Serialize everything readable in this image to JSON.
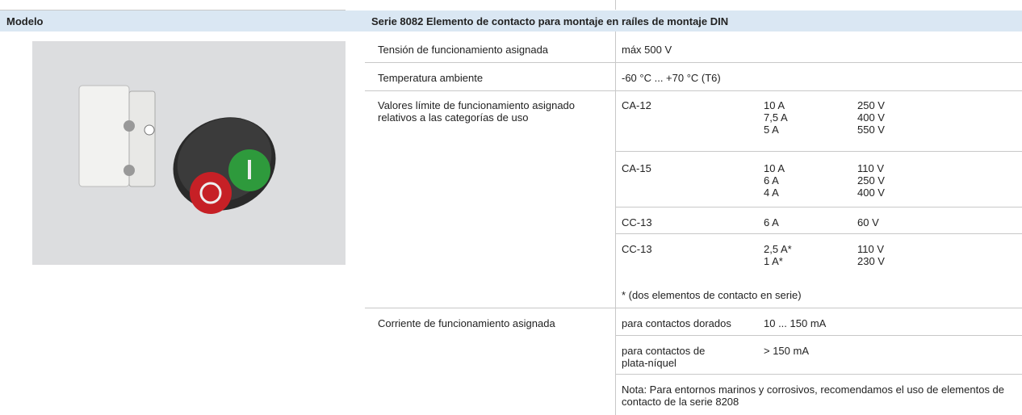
{
  "header": {
    "model": "Modelo",
    "title": "Serie 8082 Elemento de contacto para montaje en raíles de montaje DIN"
  },
  "specs": {
    "rated_voltage": {
      "label": "Tensión de funcionamiento asignada",
      "value": "máx 500 V"
    },
    "ambient_temperature": {
      "label": "Temperatura ambiente",
      "value": "-60 °C ... +70 °C (T6)"
    },
    "limit_values": {
      "label": "Valores límite de funcionamiento asignado relativos a las categorías de uso",
      "categories": [
        {
          "category": "CA-12",
          "currents": [
            "10 A",
            "7,5 A",
            "5 A"
          ],
          "voltages": [
            "250 V",
            "400 V",
            "550 V"
          ]
        },
        {
          "category": "CA-15",
          "currents": [
            "10 A",
            "6 A",
            "4 A"
          ],
          "voltages": [
            "110 V",
            "250 V",
            "400 V"
          ]
        },
        {
          "category": "CC-13",
          "currents": [
            "6 A"
          ],
          "voltages": [
            "60 V"
          ]
        },
        {
          "category": "CC-13",
          "currents": [
            "2,5 A*",
            "1 A*"
          ],
          "voltages": [
            "110 V",
            "230 V"
          ],
          "footnote": "* (dos elementos de contacto en serie)"
        }
      ]
    },
    "rated_current": {
      "label": "Corriente de funcionamiento asignada",
      "entries": [
        {
          "contact": "para contactos dorados",
          "value": "10 ... 150 mA"
        },
        {
          "contact": "para contactos de plata-níquel",
          "value": "> 150 mA"
        }
      ],
      "note": "Nota: Para entornos marinos y corrosivos, recomendamos el uso de elementos de contacto de la serie 8208"
    }
  }
}
